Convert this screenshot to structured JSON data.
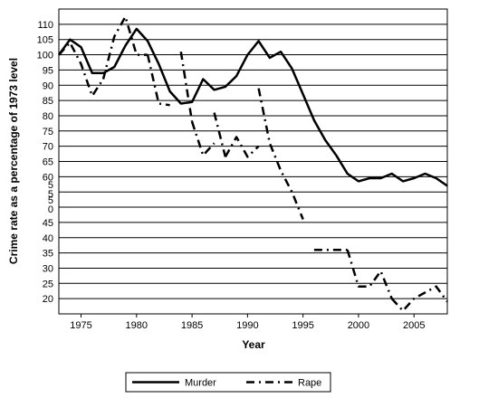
{
  "chart_data": {
    "type": "line",
    "xlabel": "Year",
    "ylabel": "Crime rate as a percentage of 1973 level",
    "xlim": [
      1973,
      2008
    ],
    "ylim": [
      15,
      115
    ],
    "x_ticks": [
      1975,
      1980,
      1985,
      1990,
      1995,
      2000,
      2005
    ],
    "x_tick_labels": [
      "1975",
      "1980",
      "1985",
      "1990",
      "1995",
      "2000",
      "2005"
    ],
    "y_ticks": [
      20,
      25,
      30,
      35,
      40,
      45,
      50,
      55,
      60,
      65,
      70,
      75,
      80,
      85,
      90,
      95,
      100,
      105,
      110
    ],
    "y_tick_labels": [
      "20",
      "25",
      "30",
      "35",
      "40",
      "45",
      "5\n0",
      "5\n5",
      "60",
      "65",
      "70",
      "75",
      "80",
      "85",
      "90",
      "95",
      "100",
      "105",
      "110"
    ],
    "grid": "horizontal",
    "legend_position": "bottom-center",
    "series": [
      {
        "name": "Murder",
        "style": "solid",
        "segments": [
          [
            [
              1973,
              100
            ],
            [
              1974,
              105
            ],
            [
              1975,
              102.5
            ],
            [
              1976,
              94
            ],
            [
              1977,
              94
            ],
            [
              1978,
              96
            ],
            [
              1979,
              103
            ],
            [
              1980,
              108.5
            ],
            [
              1981,
              104.5
            ],
            [
              1982,
              97
            ],
            [
              1983,
              88
            ],
            [
              1984,
              84
            ],
            [
              1985,
              84.5
            ],
            [
              1986,
              92
            ],
            [
              1987,
              88.5
            ],
            [
              1988,
              89.5
            ],
            [
              1989,
              93
            ],
            [
              1990,
              100
            ],
            [
              1991,
              104.5
            ],
            [
              1992,
              99
            ],
            [
              1993,
              101
            ],
            [
              1994,
              95.5
            ],
            [
              1995,
              87
            ],
            [
              1996,
              78.5
            ],
            [
              1997,
              72
            ],
            [
              1998,
              67
            ],
            [
              1999,
              61
            ],
            [
              2000,
              58.5
            ],
            [
              2001,
              59.5
            ],
            [
              2002,
              59.5
            ],
            [
              2003,
              61
            ],
            [
              2004,
              58.5
            ],
            [
              2005,
              59.5
            ],
            [
              2006,
              61
            ],
            [
              2007,
              59.5
            ],
            [
              2008,
              57
            ]
          ]
        ]
      },
      {
        "name": "Rape",
        "style": "dash-dot",
        "segments": [
          [
            [
              1973,
              100
            ],
            [
              1974,
              104
            ],
            [
              1975,
              97
            ],
            [
              1976,
              86.5
            ],
            [
              1977,
              92
            ]
          ],
          [
            [
              1977,
              92
            ],
            [
              1978,
              106
            ],
            [
              1979,
              112.5
            ],
            [
              1980,
              100
            ],
            [
              1981,
              100
            ]
          ],
          [
            [
              1981,
              100
            ],
            [
              1982,
              84
            ],
            [
              1983,
              83.5
            ]
          ],
          [
            [
              1984,
              101
            ],
            [
              1985,
              78
            ]
          ],
          [
            [
              1985,
              78
            ],
            [
              1986,
              67
            ],
            [
              1987,
              71
            ]
          ],
          [
            [
              1987,
              81
            ],
            [
              1988,
              66.5
            ]
          ],
          [
            [
              1988,
              66.5
            ],
            [
              1989,
              73
            ],
            [
              1990,
              66.5
            ],
            [
              1991,
              70
            ]
          ],
          [
            [
              1991,
              89
            ],
            [
              1992,
              71
            ],
            [
              1993,
              62
            ],
            [
              1994,
              55
            ],
            [
              1995,
              46
            ]
          ],
          [
            [
              1996,
              36
            ],
            [
              1997,
              36
            ],
            [
              1998,
              36
            ],
            [
              1999,
              36
            ]
          ],
          [
            [
              1999,
              36
            ],
            [
              2000,
              24
            ],
            [
              2001,
              24
            ],
            [
              2002,
              29
            ],
            [
              2003,
              20
            ]
          ],
          [
            [
              2003,
              20
            ],
            [
              2004,
              16
            ],
            [
              2005,
              20
            ],
            [
              2006,
              22
            ],
            [
              2007,
              24
            ],
            [
              2008,
              19
            ]
          ]
        ]
      }
    ]
  }
}
